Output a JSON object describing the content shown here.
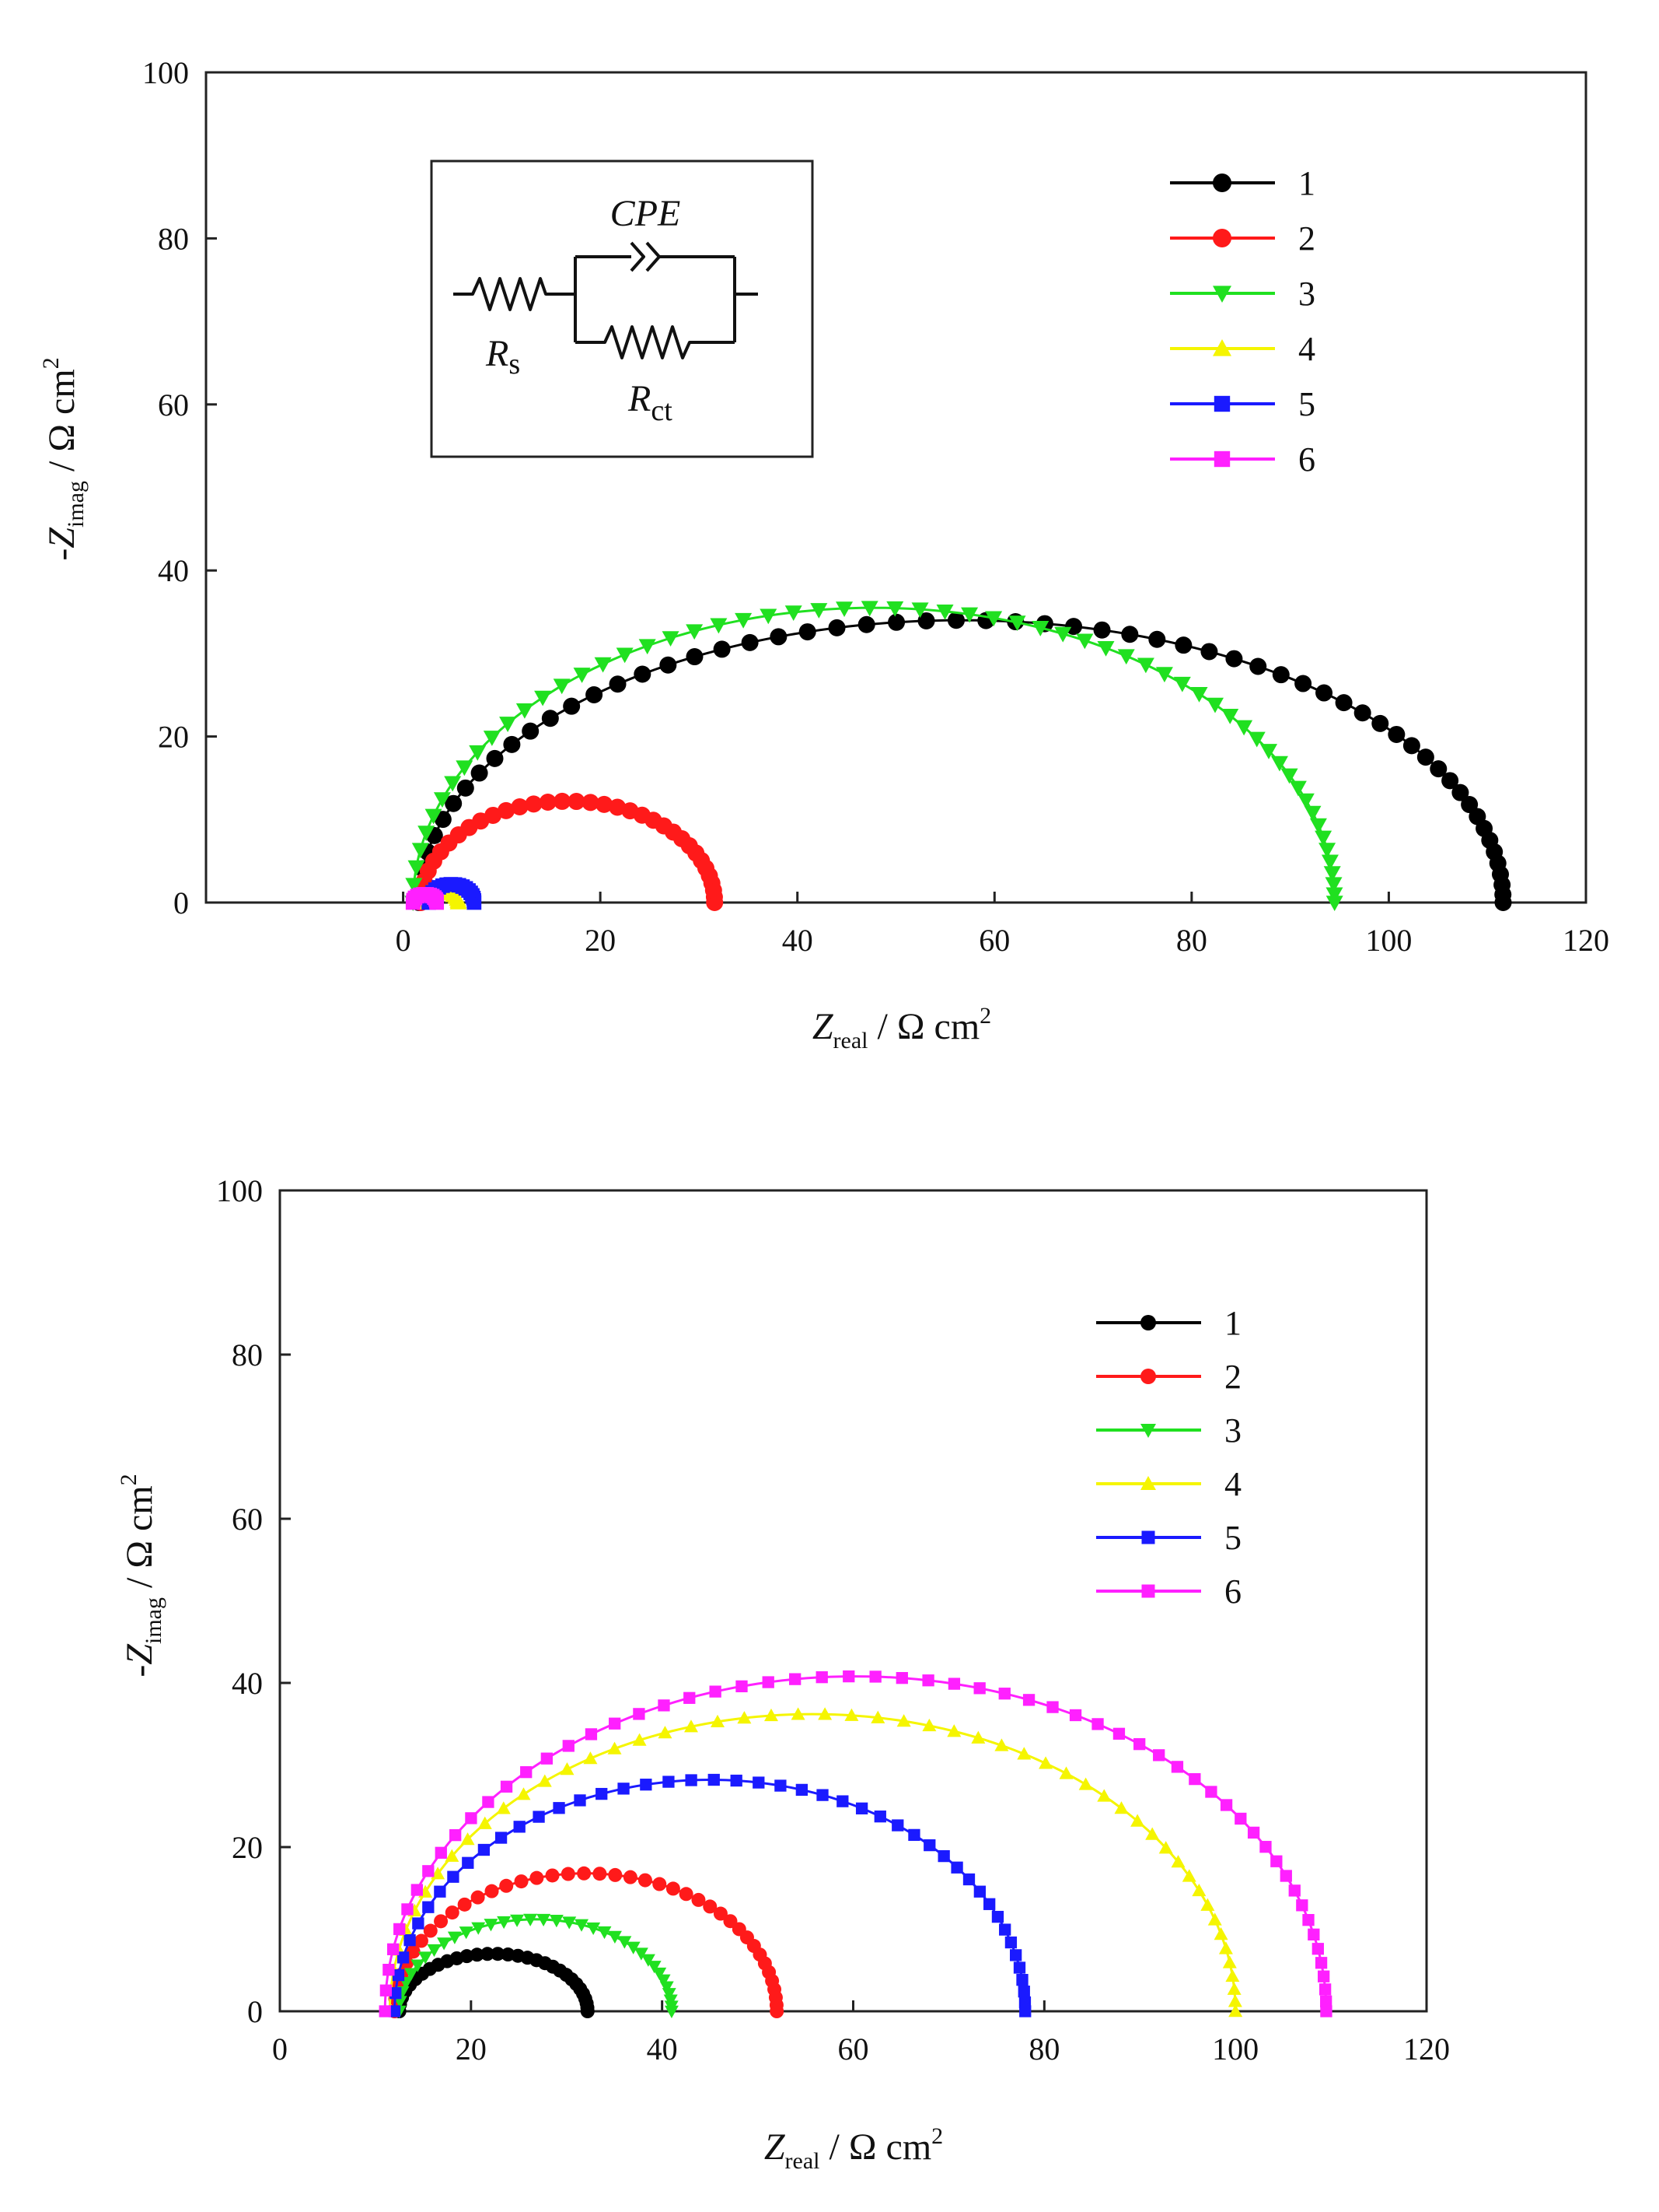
{
  "colors": {
    "series1": "#000000",
    "series2": "#ff1a1a",
    "series3": "#20e020",
    "series4": "#f5f500",
    "series5": "#1a1aff",
    "series6": "#ff20ff"
  },
  "chart_data": [
    {
      "type": "scatter",
      "title": "",
      "xlabel": {
        "main": "Z",
        "sub": "real",
        "unit": " / Ω cm",
        "sup": "2"
      },
      "ylabel": {
        "prefix": "-",
        "main": "Z",
        "sub": "imag",
        "unit": " / Ω cm",
        "sup": "2"
      },
      "xlim": [
        -20,
        120
      ],
      "ylim": [
        0,
        100
      ],
      "xticks": [
        0,
        20,
        40,
        60,
        80,
        100,
        120
      ],
      "yticks": [
        0,
        20,
        40,
        60,
        80,
        100
      ],
      "legend": "upper-right",
      "inset": {
        "cpe": "CPE",
        "rs_main": "R",
        "rs_sub": "s",
        "rct_main": "R",
        "rct_sub": "ct"
      },
      "series": [
        {
          "name": "1",
          "marker": "circle",
          "rs": 1.6,
          "rct": 110.0,
          "apex": 34.0,
          "points": 60
        },
        {
          "name": "2",
          "marker": "circle",
          "rs": 1.8,
          "rct": 29.8,
          "apex": 12.2,
          "points": 34
        },
        {
          "name": "3",
          "marker": "triangle-down",
          "rs": 1.0,
          "rct": 93.5,
          "apex": 35.5,
          "points": 60
        },
        {
          "name": "4",
          "marker": "triangle-up",
          "rs": 2.0,
          "rct": 3.6,
          "apex": 1.3,
          "points": 14
        },
        {
          "name": "5",
          "marker": "square",
          "rs": 2.6,
          "rct": 4.6,
          "apex": 2.2,
          "points": 18
        },
        {
          "name": "6",
          "marker": "square",
          "rs": 1.0,
          "rct": 2.4,
          "apex": 1.0,
          "points": 12
        }
      ]
    },
    {
      "type": "scatter",
      "title": "",
      "xlabel": {
        "main": "Z",
        "sub": "real",
        "unit": " / Ω cm",
        "sup": "2"
      },
      "ylabel": {
        "prefix": "-",
        "main": "Z",
        "sub": "imag",
        "unit": " / Ω cm",
        "sup": "2"
      },
      "xlim": [
        0,
        120
      ],
      "ylim": [
        0,
        100
      ],
      "xticks": [
        0,
        20,
        40,
        60,
        80,
        100,
        120
      ],
      "yticks": [
        0,
        20,
        40,
        60,
        80,
        100
      ],
      "legend": "upper-right",
      "series": [
        {
          "name": "1",
          "marker": "circle",
          "rs": 12.5,
          "rct": 19.7,
          "apex": 7.0,
          "points": 30
        },
        {
          "name": "2",
          "marker": "circle",
          "rs": 12.0,
          "rct": 40.0,
          "apex": 16.8,
          "points": 40
        },
        {
          "name": "3",
          "marker": "triangle-down",
          "rs": 12.5,
          "rct": 28.5,
          "apex": 11.2,
          "points": 34
        },
        {
          "name": "4",
          "marker": "triangle-up",
          "rs": 11.5,
          "rct": 88.5,
          "apex": 36.2,
          "points": 52
        },
        {
          "name": "5",
          "marker": "square",
          "rs": 12.0,
          "rct": 66.0,
          "apex": 28.2,
          "points": 46
        },
        {
          "name": "6",
          "marker": "square",
          "rs": 11.0,
          "rct": 98.5,
          "apex": 40.8,
          "points": 58
        }
      ]
    }
  ]
}
